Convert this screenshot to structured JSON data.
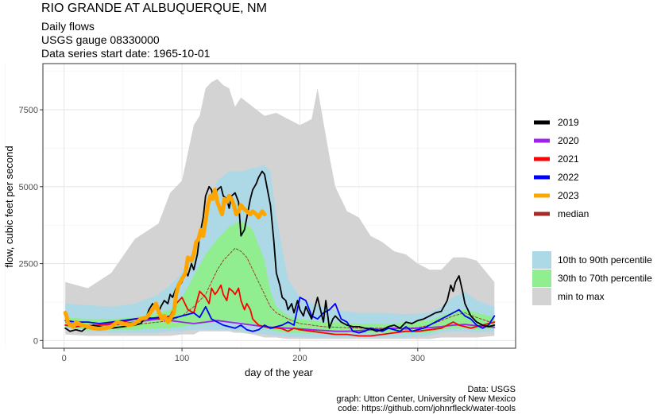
{
  "chart_data": {
    "type": "area",
    "title": "RIO GRANDE AT ALBUQUERQUE, NM",
    "subtitle_lines": [
      "Daily flows",
      "USGS gauge  08330000",
      "Data series start date:  1965-10-01"
    ],
    "xlabel": "day of the year",
    "ylabel": "flow, cubic feet per second",
    "xlim": [
      -18,
      383
    ],
    "ylim": [
      -250,
      9000
    ],
    "x_ticks": [
      0,
      100,
      200,
      300
    ],
    "y_ticks": [
      0,
      2500,
      5000,
      7500
    ],
    "y_tick_labels": [
      "0",
      "2500",
      "5000",
      "7500"
    ],
    "grid": true,
    "legend_position": "right",
    "caption_lines": [
      "Data: USGS",
      "graph: Utton Center, University of New Mexico",
      "code: https://github.com/johnrfleck/water-tools"
    ],
    "colors": {
      "band_minmax": "#d3d3d3",
      "band_10_90": "#add8e6",
      "band_30_70": "#90ee90",
      "median": "#a52a2a",
      "2019": "#000000",
      "2020": "#a020f0",
      "2021": "#ff0000",
      "2022": "#0000ff",
      "2023": "#ffa500"
    },
    "line_legend": [
      "2019",
      "2020",
      "2021",
      "2022",
      "2023",
      "median"
    ],
    "band_legend": [
      "10th to 90th percentile",
      "30th to 70th percentile",
      "min to max"
    ],
    "bands": {
      "min_max": {
        "x": [
          1,
          20,
          40,
          60,
          80,
          90,
          100,
          110,
          115,
          120,
          125,
          130,
          135,
          140,
          145,
          150,
          160,
          170,
          180,
          190,
          200,
          210,
          215,
          220,
          225,
          230,
          240,
          250,
          260,
          270,
          280,
          290,
          300,
          310,
          320,
          330,
          340,
          350,
          365
        ],
        "lo": [
          200,
          150,
          150,
          150,
          150,
          150,
          200,
          200,
          300,
          300,
          300,
          300,
          300,
          300,
          250,
          250,
          200,
          100,
          100,
          50,
          50,
          50,
          50,
          50,
          50,
          50,
          50,
          50,
          50,
          50,
          50,
          50,
          50,
          50,
          100,
          100,
          100,
          100,
          150
        ],
        "hi": [
          1900,
          1700,
          2200,
          3300,
          3800,
          4800,
          5200,
          7000,
          7300,
          8200,
          8400,
          8500,
          8300,
          8200,
          7600,
          7900,
          7600,
          7300,
          7400,
          7200,
          7000,
          7200,
          8200,
          7100,
          6000,
          5000,
          4200,
          4000,
          3400,
          3200,
          2900,
          2800,
          2500,
          2300,
          2300,
          2700,
          2700,
          2600,
          1900
        ]
      },
      "p10_p90": {
        "x": [
          1,
          20,
          40,
          60,
          80,
          90,
          100,
          110,
          120,
          130,
          140,
          150,
          160,
          170,
          175,
          180,
          185,
          190,
          200,
          210,
          220,
          230,
          250,
          270,
          290,
          310,
          320,
          330,
          340,
          350,
          365
        ],
        "lo": [
          400,
          300,
          250,
          250,
          250,
          300,
          300,
          350,
          350,
          350,
          350,
          300,
          250,
          200,
          200,
          150,
          150,
          120,
          120,
          100,
          100,
          100,
          100,
          100,
          100,
          150,
          250,
          300,
          300,
          250,
          300
        ],
        "hi": [
          1200,
          1150,
          1100,
          1200,
          1500,
          1800,
          2200,
          3000,
          4000,
          5200,
          5500,
          5500,
          5600,
          5700,
          5500,
          4000,
          3000,
          2000,
          1400,
          1200,
          1100,
          1000,
          900,
          900,
          850,
          900,
          1100,
          1400,
          1600,
          1300,
          1100
        ]
      },
      "p30_p70": {
        "x": [
          1,
          20,
          40,
          60,
          80,
          90,
          100,
          110,
          120,
          130,
          140,
          150,
          160,
          165,
          170,
          175,
          180,
          190,
          200,
          220,
          250,
          280,
          310,
          320,
          330,
          340,
          350,
          365
        ],
        "lo": [
          450,
          350,
          350,
          350,
          400,
          400,
          450,
          500,
          550,
          600,
          650,
          600,
          500,
          450,
          400,
          350,
          300,
          250,
          250,
          250,
          250,
          250,
          250,
          350,
          400,
          400,
          350,
          400
        ],
        "hi": [
          750,
          700,
          700,
          750,
          900,
          1000,
          1400,
          2100,
          2800,
          3300,
          3700,
          3900,
          3600,
          3100,
          2600,
          1600,
          1100,
          800,
          700,
          600,
          550,
          550,
          650,
          800,
          950,
          1000,
          900,
          750
        ]
      }
    },
    "series": [
      {
        "name": "median",
        "style": "dashed",
        "x": [
          1,
          20,
          40,
          60,
          80,
          90,
          100,
          110,
          120,
          125,
          130,
          135,
          140,
          145,
          150,
          155,
          160,
          165,
          170,
          175,
          180,
          190,
          200,
          220,
          250,
          280,
          300,
          310,
          320,
          330,
          340,
          350,
          365
        ],
        "y": [
          600,
          500,
          500,
          520,
          600,
          650,
          800,
          1100,
          1500,
          1900,
          2300,
          2600,
          2800,
          3000,
          2900,
          2700,
          2300,
          1900,
          1500,
          1100,
          900,
          700,
          550,
          450,
          400,
          400,
          420,
          500,
          650,
          800,
          900,
          750,
          550
        ]
      },
      {
        "name": "2019",
        "x": [
          1,
          5,
          10,
          15,
          20,
          25,
          30,
          40,
          50,
          60,
          65,
          70,
          72,
          75,
          78,
          80,
          82,
          85,
          88,
          90,
          92,
          95,
          98,
          100,
          103,
          105,
          108,
          110,
          113,
          115,
          118,
          120,
          123,
          125,
          127,
          130,
          133,
          135,
          138,
          140,
          142,
          145,
          148,
          150,
          153,
          155,
          158,
          160,
          163,
          165,
          168,
          170,
          173,
          175,
          178,
          180,
          183,
          185,
          188,
          190,
          193,
          195,
          198,
          200,
          203,
          205,
          210,
          215,
          220,
          222,
          225,
          228,
          230,
          235,
          240,
          245,
          250,
          255,
          260,
          265,
          270,
          275,
          280,
          285,
          290,
          295,
          300,
          305,
          310,
          315,
          320,
          325,
          328,
          330,
          332,
          335,
          338,
          340,
          345,
          350,
          355,
          360,
          365
        ],
        "y": [
          400,
          300,
          350,
          300,
          450,
          500,
          450,
          400,
          450,
          500,
          550,
          800,
          1000,
          1200,
          1050,
          900,
          1100,
          1300,
          1200,
          1500,
          1400,
          1700,
          1800,
          1900,
          2300,
          2100,
          2500,
          2300,
          2800,
          3400,
          4000,
          4700,
          5000,
          4900,
          4600,
          4900,
          5000,
          4700,
          4600,
          4300,
          4700,
          4800,
          4500,
          3400,
          3600,
          4000,
          4600,
          4900,
          5100,
          5300,
          5500,
          5400,
          4800,
          4400,
          3200,
          2200,
          1800,
          1400,
          1300,
          1000,
          1200,
          900,
          1300,
          1000,
          800,
          1100,
          700,
          1400,
          600,
          1300,
          400,
          700,
          800,
          600,
          500,
          450,
          450,
          400,
          380,
          300,
          350,
          450,
          500,
          400,
          600,
          550,
          650,
          700,
          800,
          900,
          950,
          1300,
          1800,
          1600,
          1900,
          2100,
          1600,
          1200,
          800,
          600,
          500,
          450,
          500
        ]
      },
      {
        "name": "2020",
        "x": [
          1,
          10,
          20,
          30,
          40,
          50,
          60,
          70,
          80,
          90,
          100,
          110,
          120,
          130,
          140,
          150,
          160,
          170,
          180,
          190,
          200,
          210,
          220,
          230,
          240,
          250,
          260,
          270,
          280,
          290,
          300,
          310,
          320,
          330,
          340,
          350,
          360,
          365
        ],
        "y": [
          500,
          450,
          480,
          500,
          520,
          550,
          600,
          650,
          700,
          650,
          600,
          550,
          600,
          650,
          600,
          550,
          500,
          450,
          420,
          400,
          380,
          350,
          330,
          300,
          300,
          320,
          350,
          380,
          400,
          380,
          400,
          420,
          450,
          500,
          520,
          480,
          450,
          430
        ]
      },
      {
        "name": "2021",
        "x": [
          1,
          10,
          20,
          30,
          40,
          50,
          60,
          70,
          80,
          90,
          95,
          100,
          105,
          110,
          115,
          120,
          123,
          125,
          128,
          130,
          133,
          135,
          138,
          140,
          143,
          145,
          148,
          150,
          153,
          155,
          158,
          160,
          165,
          170,
          175,
          180,
          185,
          190,
          195,
          200,
          210,
          220,
          230,
          240,
          250,
          260,
          270,
          280,
          290,
          300,
          310,
          320,
          325,
          330,
          335,
          340,
          345,
          350,
          355,
          360,
          365
        ],
        "y": [
          500,
          450,
          480,
          500,
          550,
          600,
          700,
          750,
          700,
          800,
          1200,
          1400,
          1000,
          900,
          1600,
          1400,
          1200,
          1700,
          1500,
          1600,
          1800,
          1500,
          1300,
          1700,
          1600,
          1500,
          1700,
          1300,
          1000,
          1200,
          1000,
          700,
          500,
          450,
          400,
          420,
          380,
          300,
          400,
          350,
          300,
          250,
          200,
          200,
          150,
          150,
          200,
          250,
          300,
          300,
          350,
          400,
          500,
          600,
          500,
          450,
          400,
          450,
          500,
          550,
          600
        ]
      },
      {
        "name": "2022",
        "x": [
          1,
          10,
          20,
          30,
          40,
          50,
          60,
          70,
          80,
          90,
          100,
          110,
          115,
          120,
          125,
          130,
          135,
          140,
          145,
          150,
          155,
          160,
          165,
          170,
          175,
          180,
          185,
          190,
          195,
          200,
          205,
          210,
          215,
          220,
          225,
          230,
          235,
          240,
          245,
          250,
          255,
          260,
          265,
          270,
          275,
          280,
          285,
          290,
          295,
          300,
          305,
          310,
          315,
          320,
          325,
          330,
          335,
          340,
          345,
          350,
          355,
          360,
          365
        ],
        "y": [
          650,
          600,
          600,
          550,
          600,
          650,
          700,
          700,
          750,
          700,
          800,
          900,
          750,
          1100,
          700,
          600,
          500,
          450,
          400,
          500,
          350,
          300,
          350,
          500,
          400,
          450,
          500,
          600,
          500,
          1400,
          1300,
          800,
          700,
          900,
          1000,
          1200,
          700,
          600,
          300,
          250,
          300,
          400,
          350,
          300,
          400,
          350,
          300,
          450,
          300,
          350,
          400,
          500,
          600,
          700,
          800,
          900,
          1000,
          800,
          700,
          500,
          400,
          500,
          800
        ]
      },
      {
        "name": "2023",
        "x": [
          1,
          2,
          3,
          5,
          8,
          10,
          15,
          20,
          25,
          30,
          35,
          40,
          45,
          50,
          55,
          60,
          65,
          70,
          73,
          75,
          78,
          80,
          83,
          85,
          88,
          90,
          93,
          95,
          97,
          100,
          103,
          105,
          108,
          110,
          112,
          114,
          116,
          118,
          120,
          122,
          124,
          126,
          128,
          130,
          132,
          134,
          136,
          138,
          140,
          142,
          144,
          146,
          148,
          150,
          152,
          155,
          158,
          160,
          163,
          165,
          168,
          170
        ],
        "y": [
          900,
          800,
          600,
          500,
          450,
          600,
          500,
          450,
          400,
          380,
          400,
          450,
          600,
          550,
          500,
          550,
          700,
          750,
          900,
          1000,
          1200,
          950,
          700,
          800,
          600,
          700,
          900,
          1500,
          1800,
          2000,
          2200,
          2700,
          2600,
          2800,
          3200,
          3300,
          3600,
          3400,
          3900,
          4400,
          4700,
          4600,
          4900,
          4500,
          4300,
          4100,
          4600,
          4500,
          4700,
          4600,
          4400,
          4100,
          4200,
          4400,
          4300,
          4200,
          4100,
          4200,
          4100,
          4000,
          4200,
          4100
        ]
      }
    ]
  }
}
